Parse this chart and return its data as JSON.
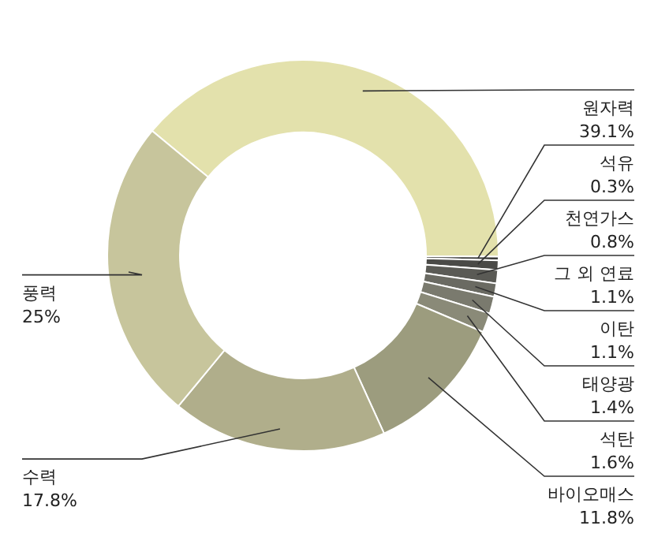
{
  "chart_data": {
    "type": "donut",
    "categories": [
      "원자력",
      "석유",
      "천연가스",
      "그 외 연료",
      "이탄",
      "태양광",
      "석탄",
      "바이오매스",
      "수력",
      "풍력"
    ],
    "values": [
      39.1,
      0.3,
      0.8,
      1.1,
      1.1,
      1.4,
      1.6,
      11.8,
      17.8,
      25
    ],
    "value_labels": [
      "39.1%",
      "0.3%",
      "0.8%",
      "1.1%",
      "1.1%",
      "1.4%",
      "1.6%",
      "11.8%",
      "17.8%",
      "25%"
    ],
    "colors": [
      "#e3e1ac",
      "#3c3c3a",
      "#4a4a47",
      "#5a5a55",
      "#6a6a62",
      "#7a7a6e",
      "#8a8a78",
      "#9c9c7e",
      "#b0ae8b",
      "#c7c59c"
    ]
  }
}
